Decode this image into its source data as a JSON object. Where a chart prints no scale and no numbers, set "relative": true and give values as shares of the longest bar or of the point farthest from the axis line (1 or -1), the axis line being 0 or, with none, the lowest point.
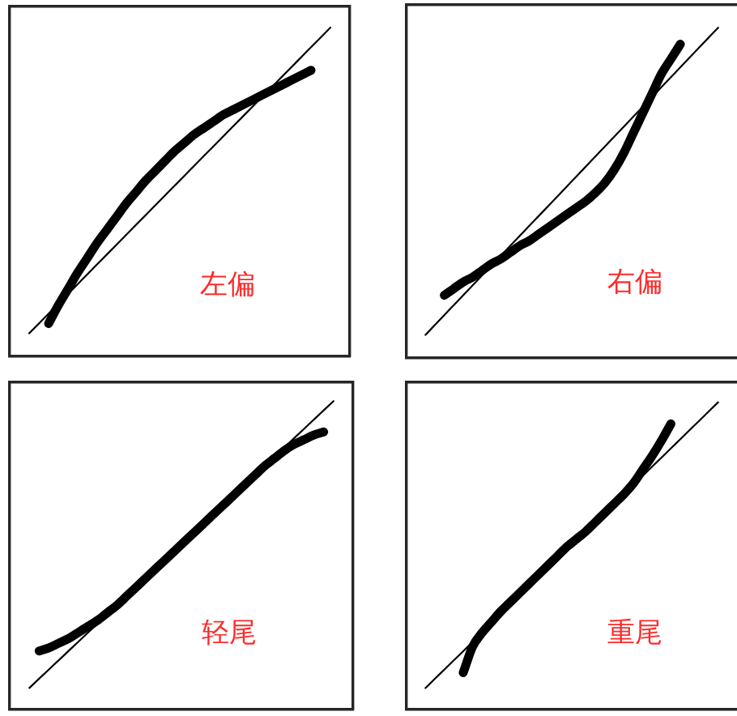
{
  "chart_data": [
    {
      "type": "line",
      "relative": true,
      "marker": "none",
      "annotations": [
        "左偏"
      ],
      "categories": [
        null,
        null,
        null,
        null,
        null,
        null,
        null,
        null,
        null,
        null,
        null,
        null,
        null,
        null,
        null,
        null,
        null,
        null,
        null,
        null,
        null,
        null,
        null,
        null,
        null,
        null,
        null,
        null,
        null,
        null,
        null,
        null,
        null,
        null,
        null,
        null
      ],
      "series": [
        {
          "color": "#000000",
          "values": [
            null,
            null,
            0.07,
            0.1,
            0.13,
            0.16,
            0.19,
            0.22,
            0.25,
            0.28,
            0.31,
            0.34,
            0.37,
            0.4,
            0.43,
            0.46,
            0.49,
            0.52,
            0.55,
            0.58,
            0.61,
            0.64,
            0.67,
            0.7,
            0.73,
            0.76,
            0.79,
            0.82,
            0.85,
            0.88,
            0.91,
            0.94,
            0.97,
            1.0,
            null,
            null
          ]
        },
        {
          "color": "#000000",
          "values": [
            null,
            null,
            null,
            null,
            0.1,
            0.155,
            0.205,
            0.255,
            0.3,
            0.345,
            0.385,
            0.425,
            0.465,
            0.5,
            0.535,
            0.565,
            0.595,
            0.625,
            0.65,
            0.675,
            0.695,
            0.715,
            0.735,
            0.75,
            0.765,
            0.78,
            0.795,
            0.81,
            0.825,
            0.84,
            0.855,
            0.87,
            null,
            null,
            null,
            null
          ]
        }
      ]
    },
    {
      "type": "line",
      "relative": true,
      "marker": "none",
      "annotations": [
        "右偏"
      ],
      "categories": [
        null,
        null,
        null,
        null,
        null,
        null,
        null,
        null,
        null,
        null,
        null,
        null,
        null,
        null,
        null,
        null,
        null,
        null,
        null,
        null,
        null,
        null,
        null,
        null,
        null,
        null,
        null,
        null,
        null,
        null,
        null,
        null,
        null,
        null,
        null,
        null
      ],
      "series": [
        {
          "color": "#000000",
          "values": [
            null,
            null,
            0.07,
            0.1,
            0.13,
            0.16,
            0.19,
            0.22,
            0.25,
            0.28,
            0.31,
            0.34,
            0.37,
            0.4,
            0.43,
            0.46,
            0.49,
            0.52,
            0.55,
            0.58,
            0.61,
            0.64,
            0.67,
            0.7,
            0.73,
            0.76,
            0.79,
            0.82,
            0.85,
            0.88,
            0.91,
            0.94,
            0.97,
            1.0,
            null,
            null
          ]
        },
        {
          "color": "#000000",
          "values": [
            null,
            null,
            null,
            null,
            0.19,
            0.21,
            0.23,
            0.245,
            0.265,
            0.285,
            0.3,
            0.32,
            0.34,
            0.355,
            0.375,
            0.395,
            0.415,
            0.435,
            0.455,
            0.475,
            0.5,
            0.53,
            0.57,
            0.62,
            0.68,
            0.74,
            0.8,
            0.86,
            0.905,
            0.95,
            null,
            null,
            null,
            null,
            null,
            null
          ]
        }
      ]
    },
    {
      "type": "line",
      "relative": true,
      "marker": "none",
      "annotations": [
        "轻尾"
      ],
      "categories": [
        null,
        null,
        null,
        null,
        null,
        null,
        null,
        null,
        null,
        null,
        null,
        null,
        null,
        null,
        null,
        null,
        null,
        null,
        null,
        null,
        null,
        null,
        null,
        null,
        null,
        null,
        null,
        null,
        null,
        null,
        null,
        null,
        null,
        null,
        null,
        null
      ],
      "series": [
        {
          "color": "#000000",
          "values": [
            null,
            null,
            0.07,
            0.1,
            0.13,
            0.16,
            0.19,
            0.22,
            0.25,
            0.28,
            0.31,
            0.34,
            0.37,
            0.4,
            0.43,
            0.46,
            0.49,
            0.52,
            0.55,
            0.58,
            0.61,
            0.64,
            0.67,
            0.7,
            0.73,
            0.76,
            0.79,
            0.82,
            0.85,
            0.88,
            0.91,
            0.94,
            0.97,
            1.0,
            null,
            null
          ]
        },
        {
          "color": "#000000",
          "values": [
            null,
            null,
            null,
            0.19,
            0.2,
            0.215,
            0.23,
            0.25,
            0.27,
            0.29,
            0.315,
            0.34,
            0.37,
            0.4,
            0.43,
            0.46,
            0.49,
            0.52,
            0.55,
            0.58,
            0.61,
            0.64,
            0.67,
            0.7,
            0.73,
            0.76,
            0.79,
            0.815,
            0.84,
            0.86,
            0.875,
            0.89,
            0.9,
            null,
            null,
            null
          ]
        }
      ]
    },
    {
      "type": "line",
      "relative": true,
      "marker": "none",
      "annotations": [
        "重尾"
      ],
      "categories": [
        null,
        null,
        null,
        null,
        null,
        null,
        null,
        null,
        null,
        null,
        null,
        null,
        null,
        null,
        null,
        null,
        null,
        null,
        null,
        null,
        null,
        null,
        null,
        null,
        null,
        null,
        null,
        null,
        null,
        null,
        null,
        null,
        null,
        null,
        null,
        null
      ],
      "series": [
        {
          "color": "#000000",
          "values": [
            null,
            null,
            0.07,
            0.1,
            0.13,
            0.16,
            0.19,
            0.22,
            0.25,
            0.28,
            0.31,
            0.34,
            0.37,
            0.4,
            0.43,
            0.46,
            0.49,
            0.52,
            0.55,
            0.58,
            0.61,
            0.64,
            0.67,
            0.7,
            0.73,
            0.76,
            0.79,
            0.82,
            0.85,
            0.88,
            0.91,
            0.94,
            0.97,
            1.0,
            null,
            null
          ]
        },
        {
          "color": "#000000",
          "values": [
            null,
            null,
            null,
            null,
            null,
            null,
            0.12,
            0.205,
            0.25,
            0.285,
            0.32,
            0.35,
            0.38,
            0.41,
            0.44,
            0.47,
            0.5,
            0.53,
            0.555,
            0.58,
            0.61,
            0.64,
            0.67,
            0.7,
            0.735,
            0.78,
            0.825,
            0.875,
            0.93,
            null,
            null,
            null,
            null,
            null,
            null,
            null
          ]
        }
      ]
    }
  ]
}
